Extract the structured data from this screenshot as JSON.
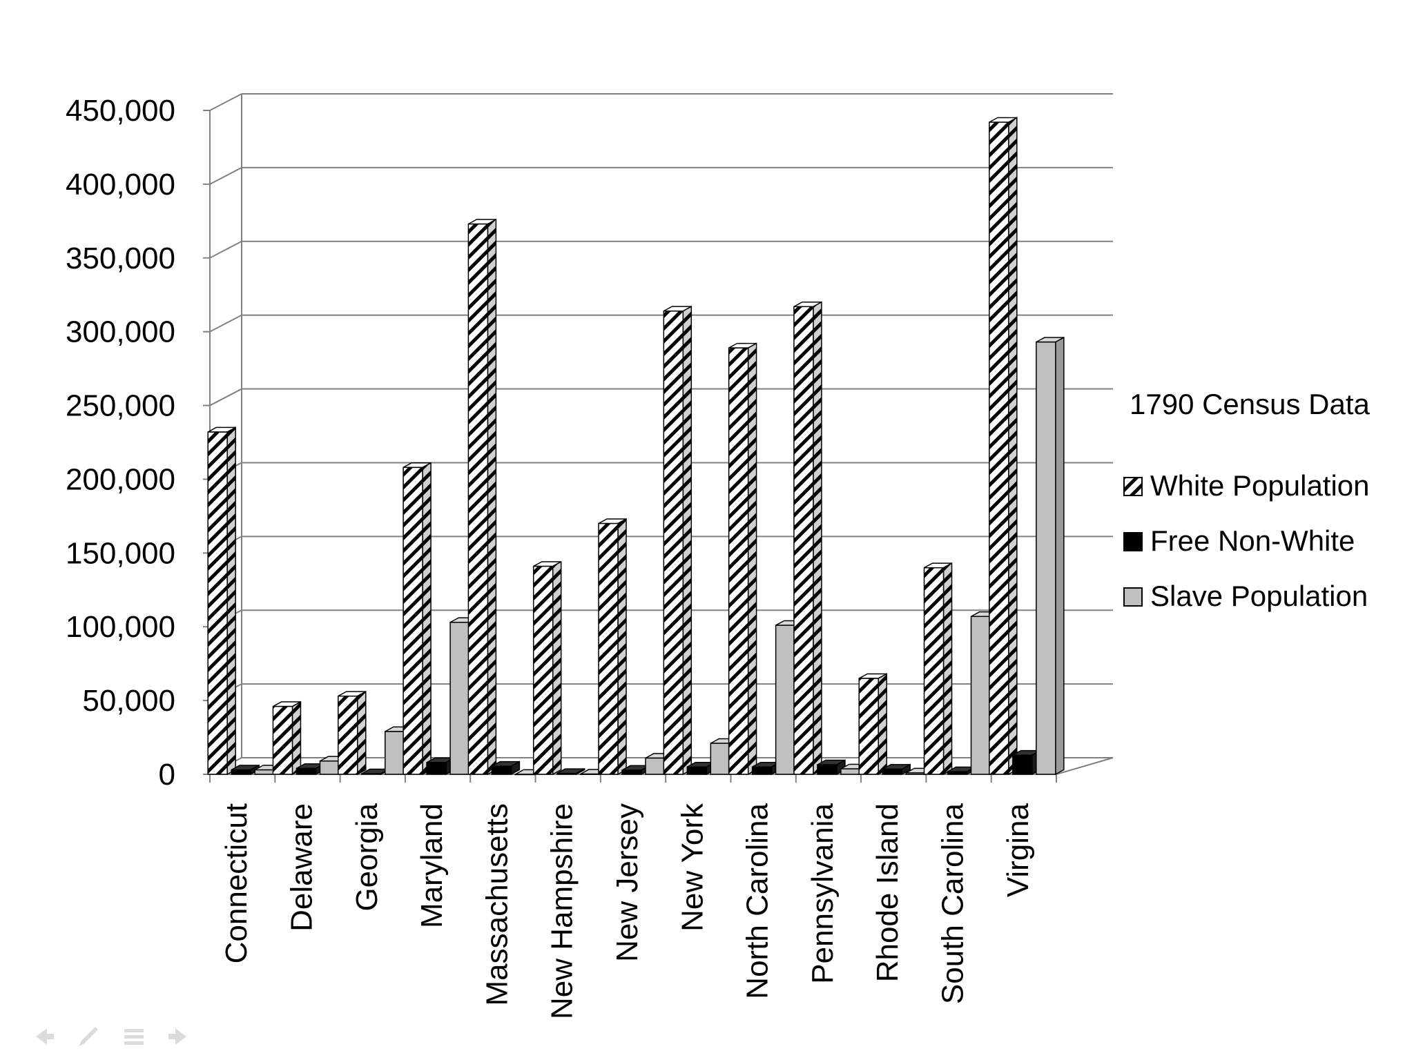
{
  "chart_data": {
    "type": "bar",
    "title": "",
    "xlabel": "",
    "ylabel": "",
    "categories": [
      "Connecticut",
      "Delaware",
      "Georgia",
      "Maryland",
      "Massachusetts",
      "New Hampshire",
      "New Jersey",
      "New York",
      "North Carolina",
      "Pennsylvania",
      "Rhode Island",
      "South Carolina",
      "Virgina"
    ],
    "series": [
      {
        "name": "White Population",
        "pattern": "diagonal-hatch",
        "color": "#ffffff",
        "values": [
          232000,
          46000,
          53000,
          208000,
          373000,
          141000,
          170000,
          314000,
          289000,
          317000,
          65000,
          140000,
          442000
        ]
      },
      {
        "name": "Free Non-White",
        "pattern": "solid",
        "color": "#000000",
        "values": [
          3000,
          4000,
          400,
          8000,
          5500,
          600,
          2800,
          5000,
          5000,
          6500,
          3500,
          1800,
          13000
        ]
      },
      {
        "name": "Slave Population",
        "pattern": "solid",
        "color": "#c0c0c0",
        "values": [
          3000,
          9000,
          29000,
          103000,
          0,
          160,
          11000,
          21000,
          101000,
          3700,
          950,
          107000,
          293000
        ]
      }
    ],
    "ylim": [
      0,
      450000
    ],
    "yticks": [
      0,
      50000,
      100000,
      150000,
      200000,
      250000,
      300000,
      350000,
      400000,
      450000
    ],
    "ytick_labels": [
      "0",
      "50,000",
      "100,000",
      "150,000",
      "200,000",
      "250,000",
      "300,000",
      "350,000",
      "400,000",
      "450,000"
    ],
    "grid": true,
    "style": "3d-clustered-column",
    "legend": {
      "title": "1790 Census Data",
      "placement": "right"
    }
  },
  "slide_nav": {
    "icons": [
      "arrow-left-icon",
      "pen-icon",
      "menu-icon",
      "arrow-right-icon"
    ]
  }
}
